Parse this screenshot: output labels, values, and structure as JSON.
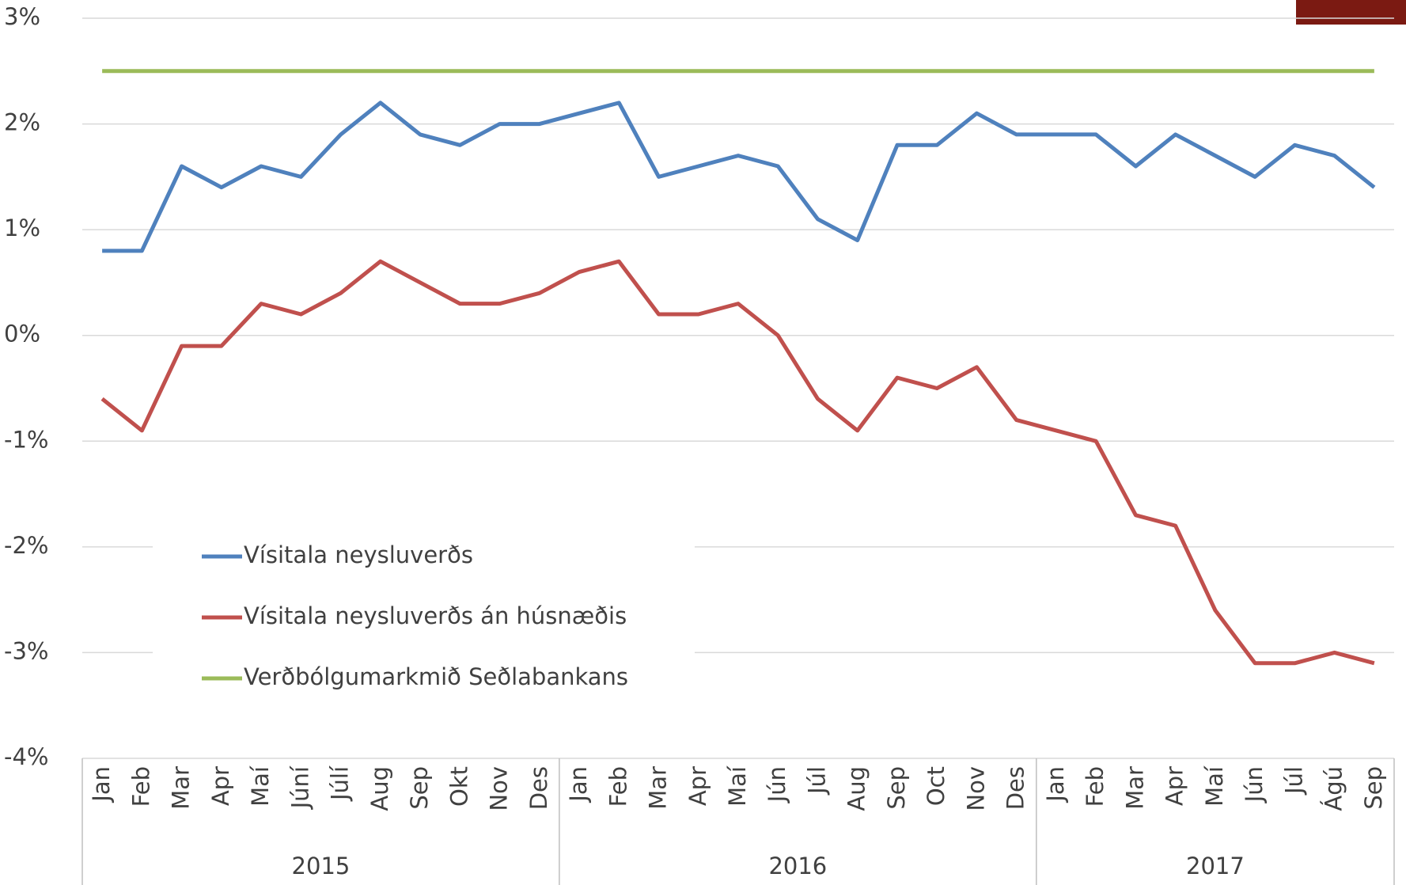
{
  "chart_data": {
    "type": "line",
    "category_groups": [
      {
        "label": "2015",
        "categories": [
          "Jan",
          "Feb",
          "Mar",
          "Apr",
          "Maí",
          "Júní",
          "Júlí",
          "Aug",
          "Sep",
          "Okt",
          "Nov",
          "Des"
        ]
      },
      {
        "label": "2016",
        "categories": [
          "Jan",
          "Feb",
          "Mar",
          "Apr",
          "Maí",
          "Jún",
          "Júl",
          "Aug",
          "Sep",
          "Oct",
          "Nov",
          "Des"
        ]
      },
      {
        "label": "2017",
        "categories": [
          "Jan",
          "Feb",
          "Mar",
          "Apr",
          "Maí",
          "Jún",
          "Júl",
          "Ágú",
          "Sep"
        ]
      }
    ],
    "series": [
      {
        "name": "Vísitala neysluverðs",
        "color": "#4f81bd",
        "values": [
          0.8,
          0.8,
          1.6,
          1.4,
          1.6,
          1.5,
          1.9,
          2.2,
          1.9,
          1.8,
          2.0,
          2.0,
          2.1,
          2.2,
          1.5,
          1.6,
          1.7,
          1.6,
          1.1,
          0.9,
          1.8,
          1.8,
          2.1,
          1.9,
          1.9,
          1.9,
          1.6,
          1.9,
          1.7,
          1.5,
          1.8,
          1.7,
          1.4
        ]
      },
      {
        "name": "Vísitala neysluverðs án húsnæðis",
        "color": "#c0504d",
        "values": [
          -0.6,
          -0.9,
          -0.1,
          -0.1,
          0.3,
          0.2,
          0.4,
          0.7,
          0.5,
          0.3,
          0.3,
          0.4,
          0.6,
          0.7,
          0.2,
          0.2,
          0.3,
          0.0,
          -0.6,
          -0.9,
          -0.4,
          -0.5,
          -0.3,
          -0.8,
          -0.9,
          -1.0,
          -1.7,
          -1.8,
          -2.6,
          -3.1,
          -3.1,
          -3.0,
          -3.1
        ]
      },
      {
        "name": "Verðbólgumarkmið Seðlabankans",
        "color": "#9bbb59",
        "values": [
          2.5,
          2.5,
          2.5,
          2.5,
          2.5,
          2.5,
          2.5,
          2.5,
          2.5,
          2.5,
          2.5,
          2.5,
          2.5,
          2.5,
          2.5,
          2.5,
          2.5,
          2.5,
          2.5,
          2.5,
          2.5,
          2.5,
          2.5,
          2.5,
          2.5,
          2.5,
          2.5,
          2.5,
          2.5,
          2.5,
          2.5,
          2.5,
          2.5
        ]
      }
    ],
    "ylim": [
      -4,
      3
    ],
    "yticks": [
      {
        "value": -4,
        "label": "-4%"
      },
      {
        "value": -3,
        "label": "-3%"
      },
      {
        "value": -2,
        "label": "-2%"
      },
      {
        "value": -1,
        "label": "-1%"
      },
      {
        "value": 0,
        "label": "0%"
      },
      {
        "value": 1,
        "label": "1%"
      },
      {
        "value": 2,
        "label": "2%"
      },
      {
        "value": 3,
        "label": "3%"
      }
    ],
    "grid": true,
    "legend": "lower left"
  }
}
